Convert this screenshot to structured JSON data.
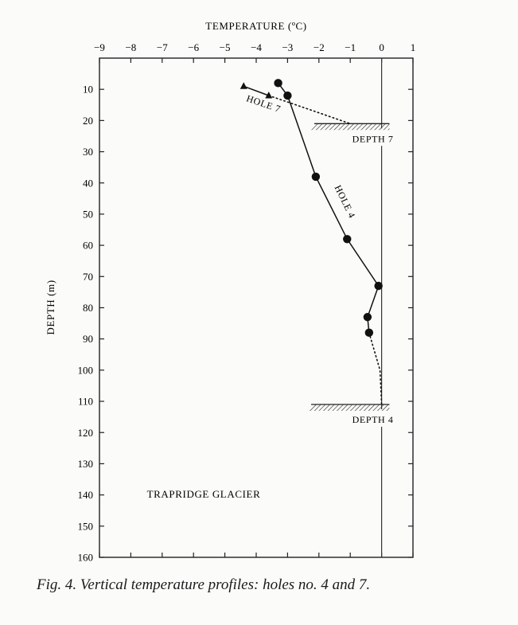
{
  "chart_data": {
    "type": "scatter",
    "title": "TRAPRIDGE GLACIER",
    "xlabel": "TEMPERATURE (ºC)",
    "ylabel": "DEPTH (m)",
    "xlim": [
      -9,
      1
    ],
    "ylim": [
      160,
      0
    ],
    "x_axis_position": "top",
    "inverted_y": true,
    "xticks": [
      -9,
      -8,
      -7,
      -6,
      -5,
      -4,
      -3,
      -2,
      -1,
      0,
      1
    ],
    "xtick_labels": [
      "−9",
      "−8",
      "−7",
      "−6",
      "−5",
      "−4",
      "−3",
      "−2",
      "−1",
      "0",
      "1"
    ],
    "yticks": [
      10,
      20,
      30,
      40,
      50,
      60,
      70,
      80,
      90,
      100,
      110,
      120,
      130,
      140,
      150,
      160
    ],
    "ytick_labels": [
      "10",
      "20",
      "30",
      "40",
      "50",
      "60",
      "70",
      "80",
      "90",
      "100",
      "110",
      "120",
      "130",
      "140",
      "150",
      "160"
    ],
    "grid": false,
    "series": [
      {
        "name": "HOLE 4",
        "marker": "circle",
        "points": [
          {
            "x": -3.3,
            "y": 8
          },
          {
            "x": -3.0,
            "y": 12
          },
          {
            "x": -2.1,
            "y": 38
          },
          {
            "x": -1.1,
            "y": 58
          },
          {
            "x": -0.1,
            "y": 73
          },
          {
            "x": -0.45,
            "y": 83
          },
          {
            "x": -0.4,
            "y": 88
          }
        ],
        "extrapolation": [
          {
            "x": -0.4,
            "y": 88
          },
          {
            "x": -0.05,
            "y": 100
          },
          {
            "x": 0,
            "y": 111
          }
        ]
      },
      {
        "name": "HOLE 7",
        "marker": "triangle",
        "points": [
          {
            "x": -4.4,
            "y": 9
          },
          {
            "x": -3.6,
            "y": 12
          }
        ],
        "extrapolation": [
          {
            "x": -3.6,
            "y": 12
          },
          {
            "x": -1.0,
            "y": 21
          }
        ]
      }
    ],
    "reference_lines": [
      {
        "orientation": "vertical",
        "x": 0,
        "style": "solid"
      }
    ],
    "surfaces": [
      {
        "label": "DEPTH 7",
        "depth": 21,
        "x_from": -2.3,
        "x_to": 0.25
      },
      {
        "label": "DEPTH 4",
        "depth": 111,
        "x_from": -2.4,
        "x_to": 0.25
      }
    ],
    "annotations": [
      {
        "text": "HOLE 7"
      },
      {
        "text": "HOLE 4"
      },
      {
        "text": "TRAPRIDGE GLACIER"
      }
    ]
  },
  "caption": "Fig. 4.  Vertical temperature profiles: holes no. 4 and 7."
}
